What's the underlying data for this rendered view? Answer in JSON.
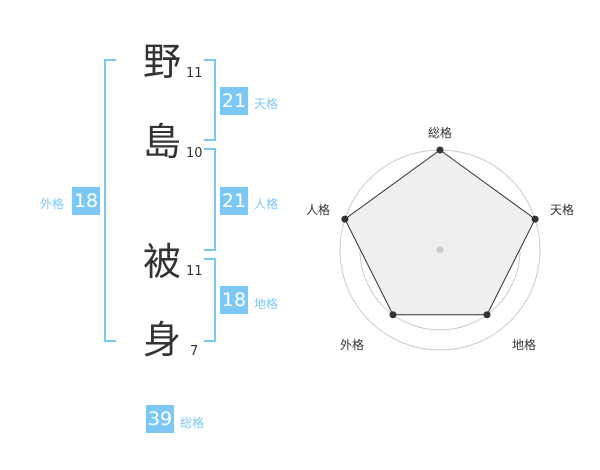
{
  "name": {
    "characters": [
      {
        "char": "野",
        "strokes": "11"
      },
      {
        "char": "島",
        "strokes": "10"
      },
      {
        "char": "被",
        "strokes": "11"
      },
      {
        "char": "身",
        "strokes": "7"
      }
    ]
  },
  "fortunes": {
    "tenkaku": {
      "label": "天格",
      "value": "21"
    },
    "jinkaku": {
      "label": "人格",
      "value": "21"
    },
    "chikaku": {
      "label": "地格",
      "value": "18"
    },
    "gaikaku": {
      "label": "外格",
      "value": "18"
    },
    "soukaku": {
      "label": "総格",
      "value": "39"
    }
  },
  "colors": {
    "accent": "#7cc8f5",
    "text": "#333333"
  },
  "chart_data": {
    "type": "radar",
    "axes": [
      "総格",
      "天格",
      "地格",
      "外格",
      "人格"
    ],
    "values": [
      5,
      5,
      4,
      4,
      5
    ],
    "range": [
      0,
      5
    ],
    "rings": 5
  }
}
